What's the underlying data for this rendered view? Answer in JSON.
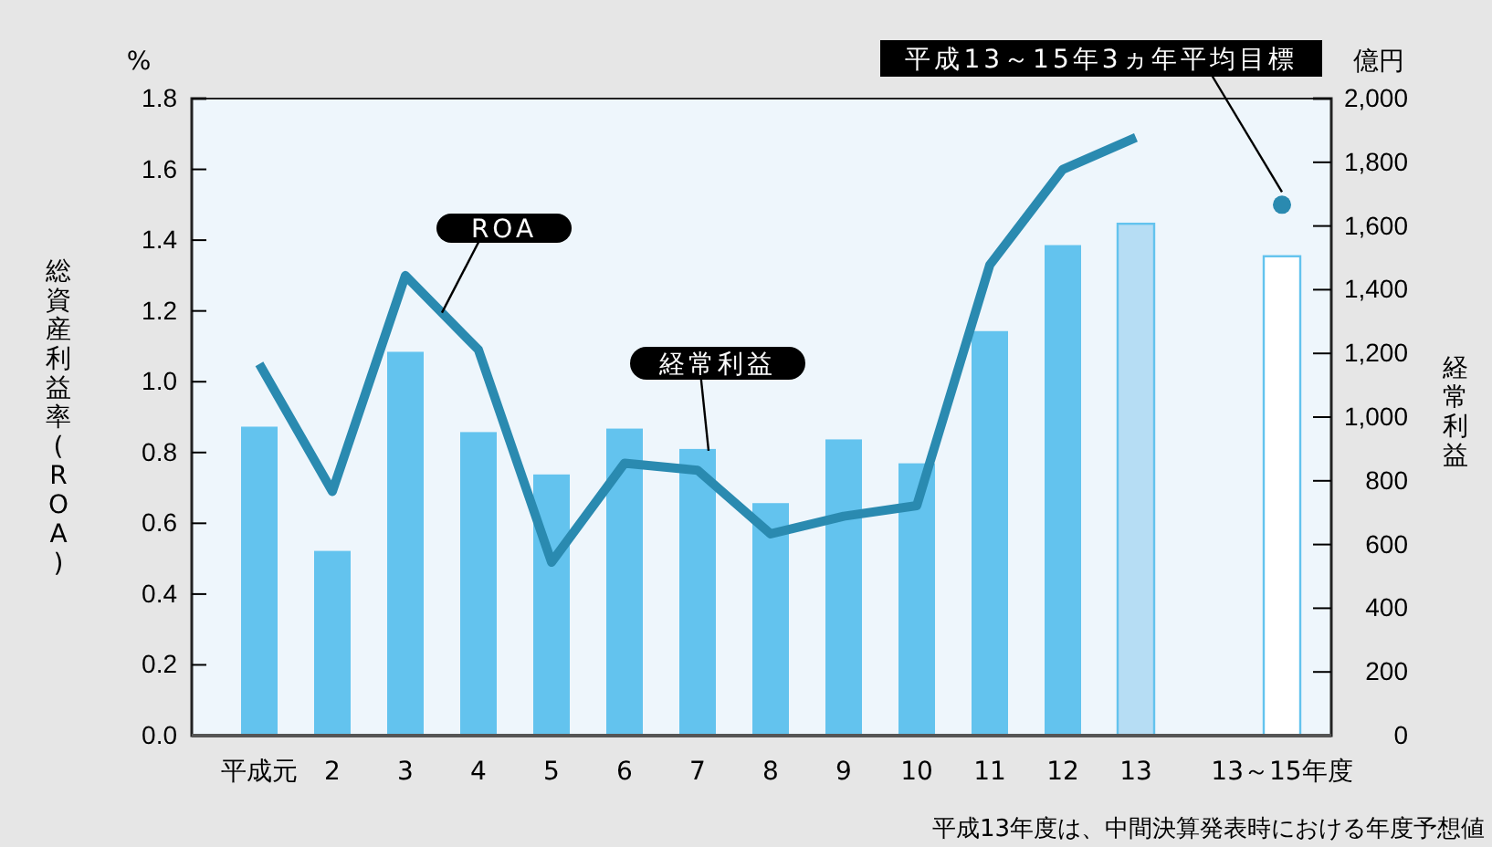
{
  "chart_data": {
    "type": "bar",
    "ylabel": "総資産利益率(ROA)",
    "y2label": "経常利益",
    "categories": [
      "平成元",
      "2",
      "3",
      "4",
      "5",
      "6",
      "7",
      "8",
      "9",
      "10",
      "11",
      "12",
      "13",
      "13～15年度"
    ],
    "series": [
      {
        "axis": "y2",
        "name": "経常利益",
        "color": "#63c3ee",
        "colors": [
          "#63c3ee",
          "#63c3ee",
          "#63c3ee",
          "#63c3ee",
          "#63c3ee",
          "#63c3ee",
          "#63c3ee",
          "#63c3ee",
          "#63c3ee",
          "#63c3ee",
          "#63c3ee",
          "#63c3ee",
          "#b6ddf4",
          "#ffffff"
        ],
        "values": [
          970,
          580,
          1205,
          953,
          820,
          964,
          900,
          730,
          930,
          855,
          1270,
          1540,
          1607,
          1505
        ]
      },
      {
        "type": "line",
        "name": "ROA",
        "color": "#2a8ab0",
        "values": [
          1.05,
          0.69,
          1.3,
          1.09,
          0.49,
          0.77,
          0.75,
          0.57,
          0.62,
          0.65,
          1.33,
          1.6,
          1.69,
          null
        ]
      },
      {
        "type": "scatter",
        "name": "平成13～15年3ヵ年平均目標",
        "color": "#2a8ab0",
        "values": [
          null,
          null,
          null,
          null,
          null,
          null,
          null,
          null,
          null,
          null,
          null,
          null,
          null,
          1.5
        ]
      }
    ],
    "ylim": [
      0,
      1.8
    ],
    "yticks": [
      {
        "value": 0,
        "label": "0.0"
      },
      {
        "value": 0.2,
        "label": "0.2"
      },
      {
        "value": 0.4,
        "label": "0.4"
      },
      {
        "value": 0.6,
        "label": "0.6"
      },
      {
        "value": 0.8,
        "label": "0.8"
      },
      {
        "value": 1,
        "label": "1.0"
      },
      {
        "value": 1.2,
        "label": "1.2"
      },
      {
        "value": 1.4,
        "label": "1.4"
      },
      {
        "value": 1.6,
        "label": "1.6"
      },
      {
        "value": 1.8,
        "label": "1.8"
      }
    ],
    "y2lim": [
      0,
      2000
    ],
    "y2ticks": [
      0,
      200,
      400,
      600,
      800,
      {
        "value": 1000,
        "label": "1,000"
      },
      {
        "value": 1200,
        "label": "1,200"
      },
      {
        "value": 1400,
        "label": "1,400"
      },
      {
        "value": 1600,
        "label": "1,600"
      },
      {
        "value": 1800,
        "label": "1,800"
      },
      {
        "value": 2000,
        "label": "2,000"
      }
    ],
    "annotations": [
      "%",
      "億円",
      "平成13年度は、中間決算発表時における年度予想値"
    ],
    "legend": false
  }
}
